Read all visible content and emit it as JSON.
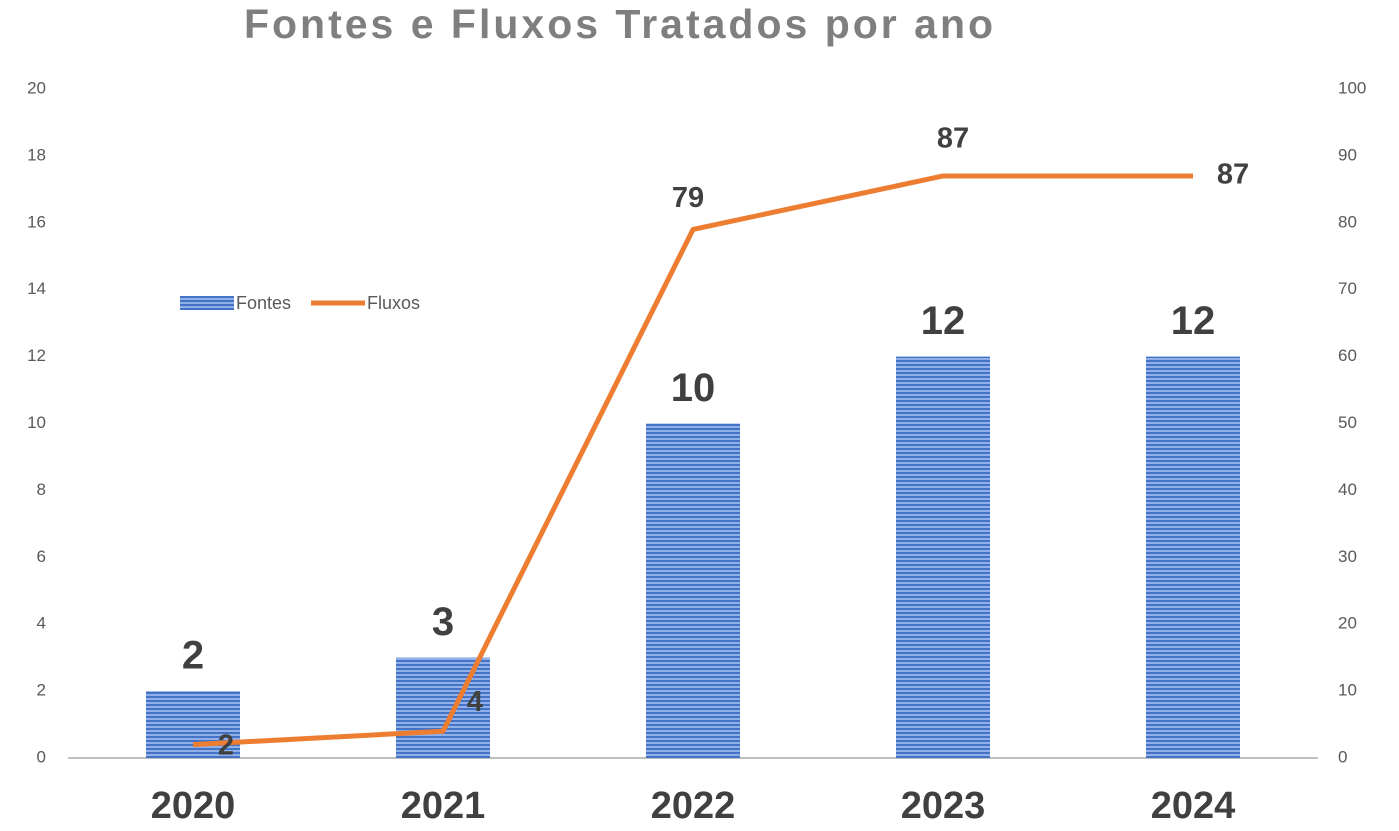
{
  "chart_data": {
    "type": "bar",
    "title": "Fontes e Fluxos Tratados por ano",
    "categories": [
      "2020",
      "2021",
      "2022",
      "2023",
      "2024"
    ],
    "series": [
      {
        "name": "Fontes",
        "type": "bar",
        "color": "#4472c4",
        "values": [
          2,
          3,
          10,
          12,
          12
        ]
      },
      {
        "name": "Fluxos",
        "type": "line",
        "axis": "y2",
        "color": "#ed7d31",
        "values": [
          2,
          4,
          79,
          87,
          87
        ]
      }
    ],
    "ylim": [
      0,
      20
    ],
    "yticks": [
      0,
      2,
      4,
      6,
      8,
      10,
      12,
      14,
      16,
      18,
      20
    ],
    "y2lim": [
      0,
      100
    ],
    "y2ticks": [
      0,
      10,
      20,
      30,
      40,
      50,
      60,
      70,
      80,
      90,
      100
    ],
    "grid": false,
    "legend": "left"
  }
}
